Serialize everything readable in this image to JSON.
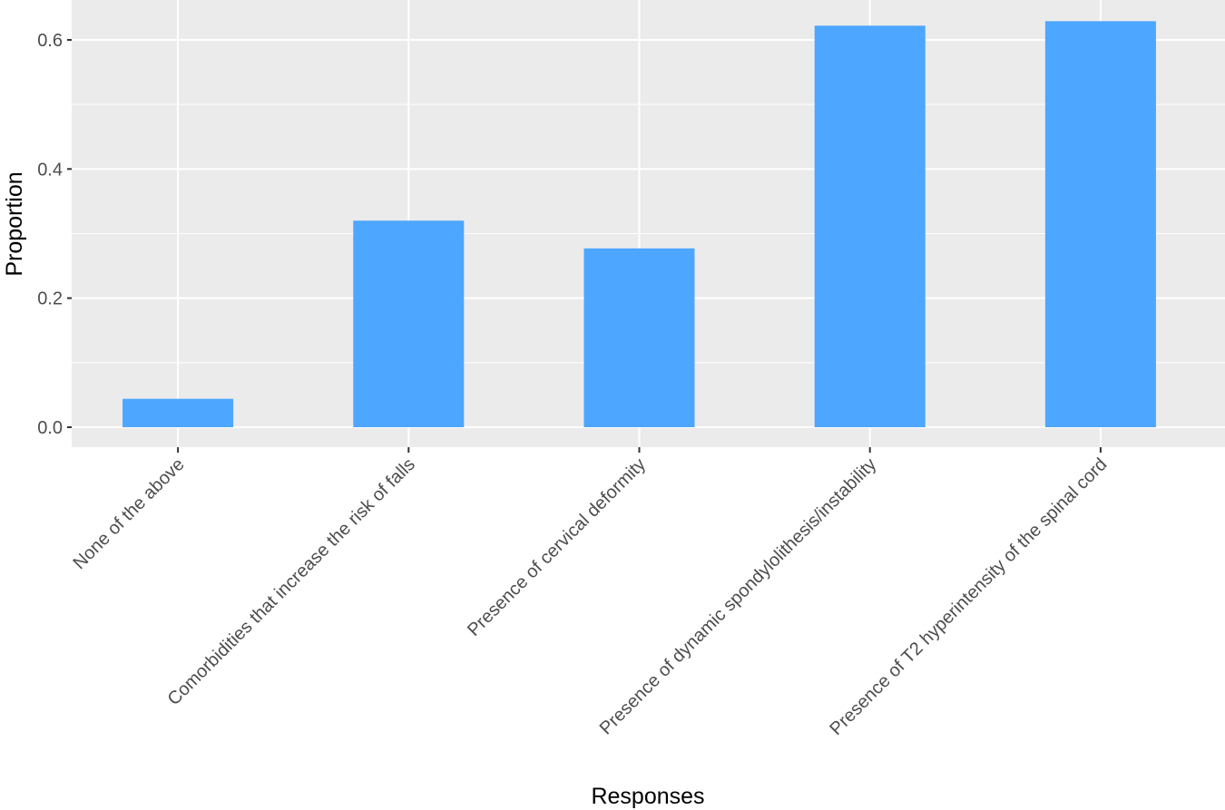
{
  "chart_data": {
    "type": "bar",
    "title": "",
    "xlabel": "Responses",
    "ylabel": "Proportion",
    "categories": [
      "None of the above",
      "Comorbidities that increase the risk of falls",
      "Presence of cervical deformity",
      "Presence of dynamic spondylolithesis/instability",
      "Presence of T2 hyperintensity of the spinal cord"
    ],
    "values": [
      0.044,
      0.32,
      0.277,
      0.622,
      0.629
    ],
    "ylim": [
      -0.03,
      0.66
    ],
    "yticks": [
      "0.0",
      "0.2",
      "0.4",
      "0.6"
    ],
    "ytick_values": [
      0,
      0.2,
      0.4,
      0.6
    ],
    "grid": true,
    "bar_color": "#4da6ff",
    "panel_color": "#ebebeb"
  }
}
